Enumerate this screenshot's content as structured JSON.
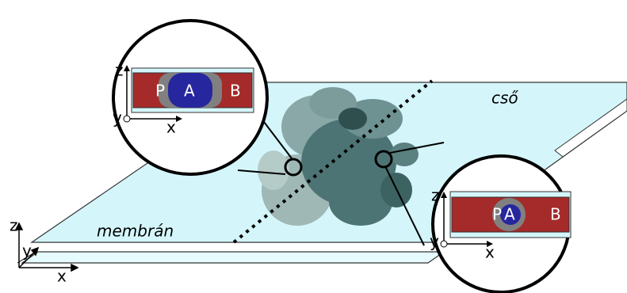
{
  "plane_labels": {
    "membrane": "membrán",
    "tube": "cső"
  },
  "axes": {
    "z": "z",
    "y": "y",
    "x": "x"
  },
  "insets": [
    {
      "z": "z",
      "y": "y",
      "x": "x",
      "p": "P",
      "a": "A",
      "b": "B"
    },
    {
      "z": "z",
      "y": "y",
      "x": "x",
      "p": "P",
      "a": "A",
      "b": "B"
    }
  ]
}
